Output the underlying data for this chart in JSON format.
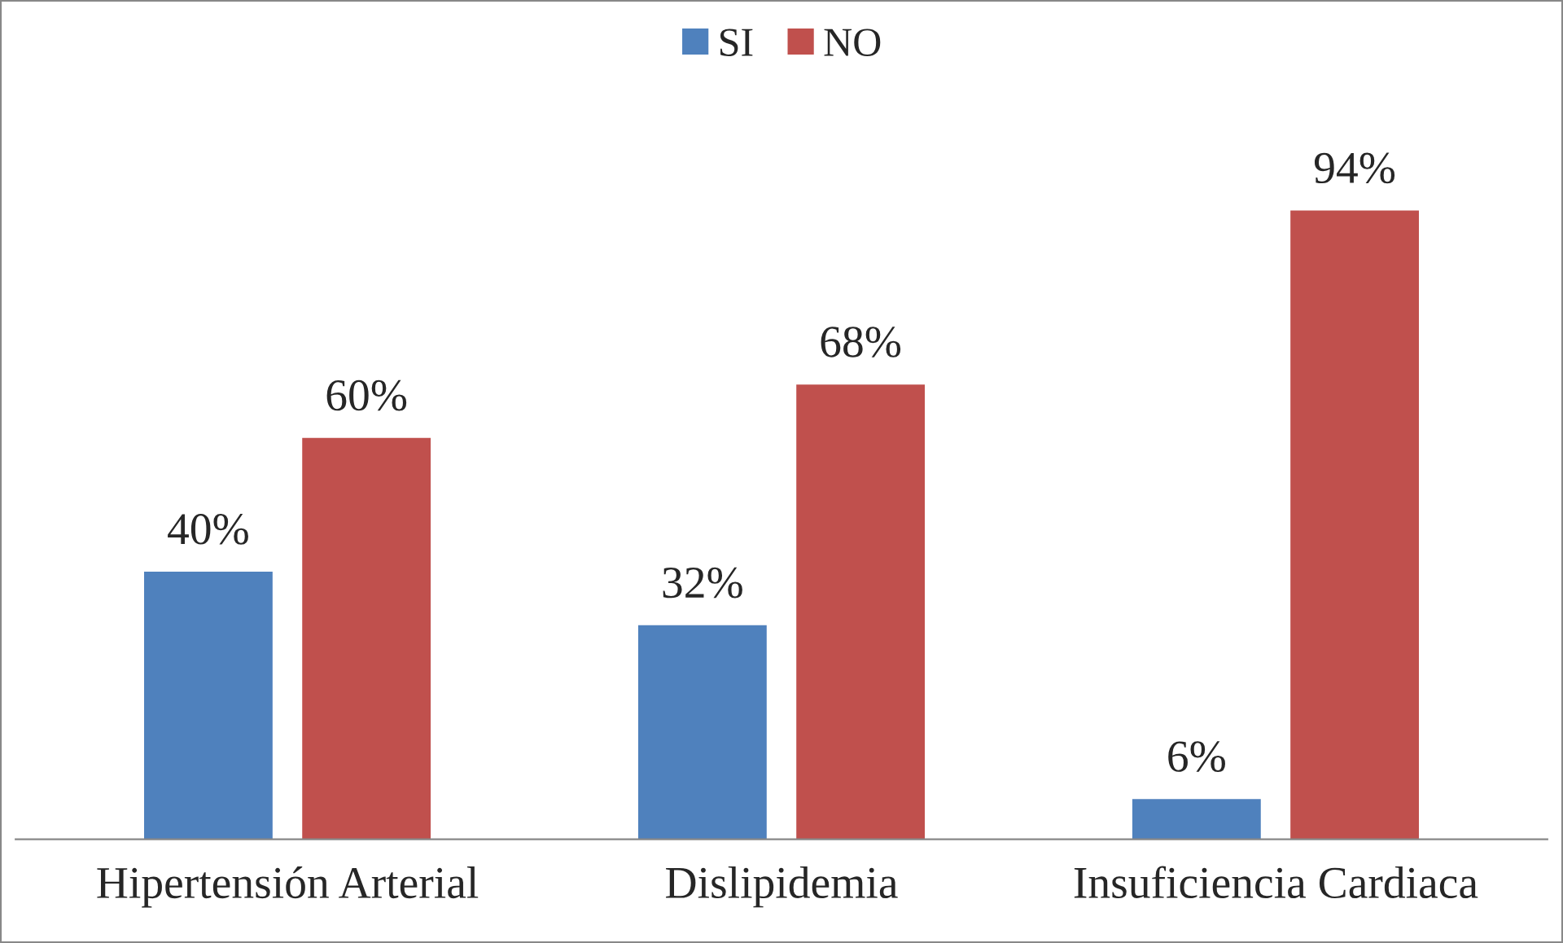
{
  "chart_data": {
    "type": "bar",
    "categories": [
      "Hipertensión Arterial",
      "Dislipidemia",
      "Insuficiencia Cardiaca"
    ],
    "series": [
      {
        "name": "SI",
        "color": "#4f81bd",
        "values": [
          40,
          32,
          6
        ],
        "value_labels": [
          "40%",
          "32%",
          "6%"
        ]
      },
      {
        "name": "NO",
        "color": "#c0504d",
        "values": [
          60,
          68,
          94
        ],
        "value_labels": [
          "60%",
          "68%",
          "94%"
        ]
      }
    ],
    "legend": "top",
    "grid": false
  }
}
